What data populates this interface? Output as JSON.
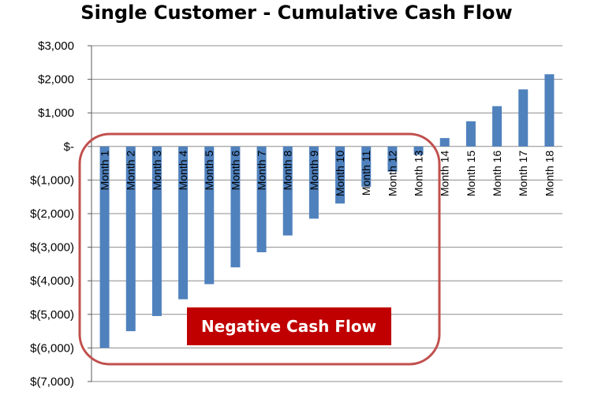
{
  "chart_data": {
    "type": "bar",
    "title": "Single Customer - Cumulative Cash Flow",
    "xlabel": "",
    "ylabel": "",
    "ylim": [
      -7000,
      3000
    ],
    "yticks": [
      3000,
      2000,
      1000,
      0,
      -1000,
      -2000,
      -3000,
      -4000,
      -5000,
      -6000,
      -7000
    ],
    "ytick_labels": [
      "$3,000",
      "$2,000",
      "$1,000",
      "$-",
      "$(1,000)",
      "$(2,000)",
      "$(3,000)",
      "$(4,000)",
      "$(5,000)",
      "$(6,000)",
      "$(7,000)"
    ],
    "categories": [
      "Month 1",
      "Month 2",
      "Month 3",
      "Month 4",
      "Month 5",
      "Month 6",
      "Month 7",
      "Month 8",
      "Month 9",
      "Month 10",
      "Month 11",
      "Month 12",
      "Month 13",
      "Month 14",
      "Month 15",
      "Month 16",
      "Month 17",
      "Month 18"
    ],
    "values": [
      -6000,
      -5500,
      -5050,
      -4550,
      -4100,
      -3600,
      -3150,
      -2650,
      -2150,
      -1700,
      -1200,
      -750,
      -250,
      250,
      750,
      1200,
      1700,
      2150
    ],
    "bar_color": "#4f81bd",
    "grid": true,
    "annotation": {
      "text": "Negative Cash Flow",
      "box_color": "#c00000",
      "outline_color": "#c0504d"
    }
  }
}
